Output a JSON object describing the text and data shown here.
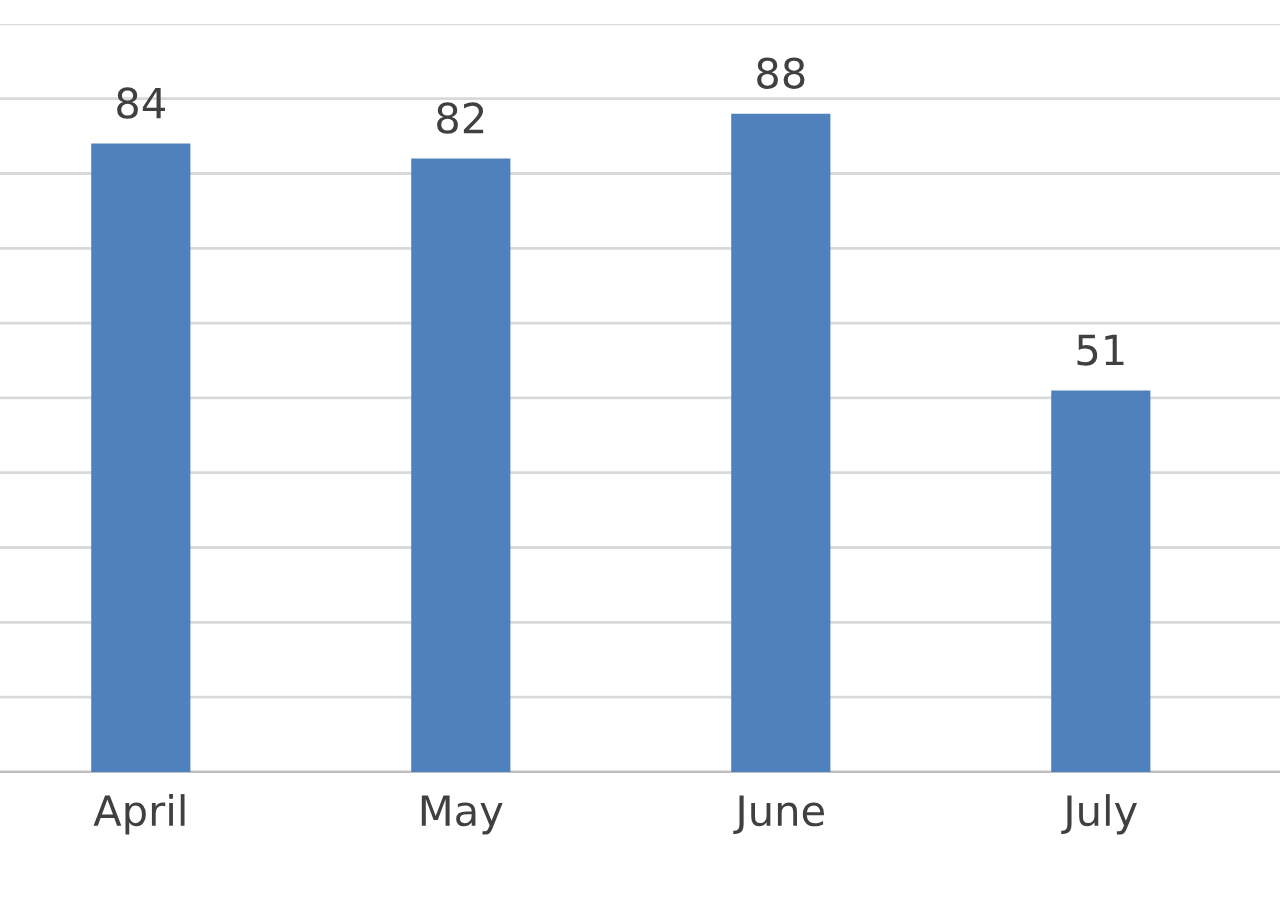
{
  "chart_data": {
    "type": "bar",
    "categories": [
      "April",
      "May",
      "June",
      "July"
    ],
    "values": [
      84,
      82,
      88,
      51
    ],
    "color": "#4f81bd",
    "ylim": [
      0,
      100
    ],
    "yticks": [
      0,
      10,
      20,
      30,
      40,
      50,
      60,
      70,
      80,
      90,
      100
    ],
    "tick_labels": "x",
    "grid": "y",
    "data_labels": true,
    "legend": false
  }
}
